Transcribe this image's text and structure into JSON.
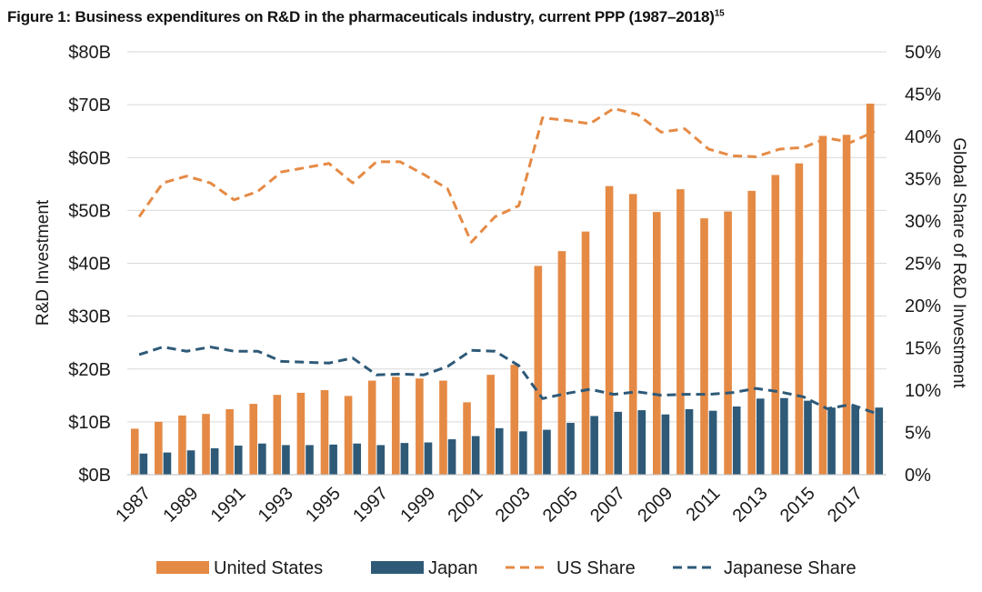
{
  "figure": {
    "title": "Figure 1: Business expenditures on R&D in the pharmaceuticals industry, current PPP (1987–2018)",
    "footnote": "15"
  },
  "chart_data": {
    "type": "bar",
    "title": "Figure 1: Business expenditures on R&D in the pharmaceuticals industry, current PPP (1987–2018)",
    "xlabel": "",
    "ylabel": "R&D Investment",
    "y2label": "Global Share of R&D Investment",
    "ylim": [
      0,
      80
    ],
    "y2lim": [
      0,
      50
    ],
    "y_ticks": [
      "$0B",
      "$10B",
      "$20B",
      "$30B",
      "$40B",
      "$50B",
      "$60B",
      "$70B",
      "$80B"
    ],
    "y2_ticks": [
      "0%",
      "5%",
      "10%",
      "15%",
      "20%",
      "25%",
      "30%",
      "35%",
      "40%",
      "45%",
      "50%"
    ],
    "x_tick_labels": [
      "1987",
      "1989",
      "1991",
      "1993",
      "1995",
      "1997",
      "1999",
      "2001",
      "2003",
      "2005",
      "2007",
      "2009",
      "2011",
      "2013",
      "2015",
      "2017"
    ],
    "categories": [
      "1987",
      "1988",
      "1989",
      "1990",
      "1991",
      "1992",
      "1993",
      "1994",
      "1995",
      "1996",
      "1997",
      "1998",
      "1999",
      "2000",
      "2001",
      "2002",
      "2003",
      "2004",
      "2005",
      "2006",
      "2007",
      "2008",
      "2009",
      "2010",
      "2011",
      "2012",
      "2013",
      "2014",
      "2015",
      "2016",
      "2017",
      "2018"
    ],
    "series": [
      {
        "name": "United States",
        "kind": "bar",
        "axis": "left",
        "color": "#E58A45",
        "values": [
          8.7,
          10.0,
          11.2,
          11.5,
          12.4,
          13.4,
          15.1,
          15.5,
          16.0,
          14.9,
          17.8,
          18.5,
          18.2,
          17.8,
          13.7,
          18.9,
          20.8,
          39.5,
          42.3,
          46.0,
          54.6,
          53.1,
          49.7,
          54.0,
          48.5,
          49.8,
          53.7,
          56.7,
          58.9,
          64.1,
          64.3,
          70.2
        ]
      },
      {
        "name": "Japan",
        "kind": "bar",
        "axis": "left",
        "color": "#2E5A78",
        "values": [
          4.0,
          4.2,
          4.6,
          5.0,
          5.5,
          5.9,
          5.6,
          5.6,
          5.7,
          5.9,
          5.6,
          6.0,
          6.1,
          6.7,
          7.3,
          8.8,
          8.2,
          8.5,
          9.8,
          11.1,
          11.9,
          12.2,
          11.4,
          12.4,
          12.1,
          12.9,
          14.4,
          14.5,
          14.0,
          12.7,
          13.0,
          12.7
        ]
      },
      {
        "name": "US Share",
        "kind": "line",
        "axis": "right",
        "color": "#E58A45",
        "dash": true,
        "values": [
          30.5,
          34.5,
          35.3,
          34.5,
          32.5,
          33.5,
          35.8,
          36.3,
          36.8,
          34.5,
          37.0,
          37.0,
          35.5,
          33.8,
          27.5,
          30.5,
          31.8,
          42.2,
          41.9,
          41.5,
          43.3,
          42.6,
          40.5,
          40.9,
          38.5,
          37.7,
          37.6,
          38.5,
          38.7,
          39.8,
          39.3,
          40.6
        ]
      },
      {
        "name": "Japanese Share",
        "kind": "line",
        "axis": "right",
        "color": "#2E5A78",
        "dash": true,
        "values": [
          14.2,
          15.1,
          14.6,
          15.1,
          14.6,
          14.6,
          13.4,
          13.3,
          13.2,
          13.8,
          11.8,
          11.9,
          11.8,
          12.8,
          14.7,
          14.6,
          12.9,
          9.0,
          9.6,
          10.1,
          9.5,
          9.8,
          9.4,
          9.5,
          9.5,
          9.7,
          10.2,
          9.8,
          9.2,
          7.8,
          8.3,
          7.3
        ]
      }
    ],
    "grid": true,
    "legend_position": "bottom"
  }
}
